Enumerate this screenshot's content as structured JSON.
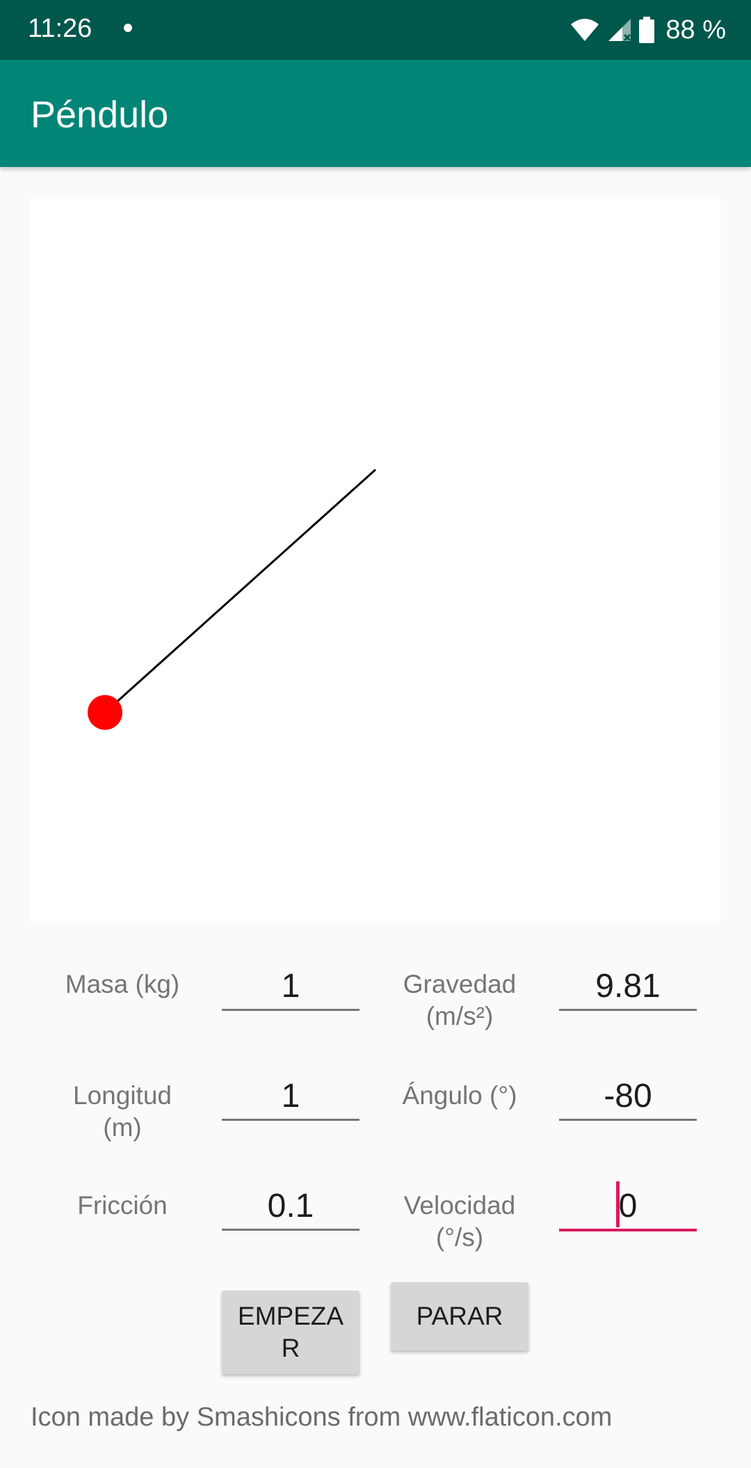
{
  "status_bar": {
    "time": "11:26",
    "battery": "88 %",
    "icons": [
      "notification-dot-icon",
      "wifi-icon",
      "signal-no-data-icon",
      "battery-icon"
    ]
  },
  "app_bar": {
    "title": "Péndulo"
  },
  "pendulum": {
    "rod_color": "#000000",
    "bob_color": "#ff0000"
  },
  "params": {
    "mass": {
      "label": "Masa (kg)",
      "value": "1"
    },
    "gravity": {
      "label_line1": "Gravedad",
      "label_line2": "(m/s²)",
      "value": "9.81"
    },
    "length": {
      "label_line1": "Longitud",
      "label_line2": "(m)",
      "value": "1"
    },
    "angle": {
      "label": "Ángulo (°)",
      "value": "-80"
    },
    "friction": {
      "label": "Fricción",
      "value": "0.1"
    },
    "velocity": {
      "label_line1": "Velocidad",
      "label_line2": "(°/s)",
      "value": "0"
    }
  },
  "buttons": {
    "start_line1": "EMPEZA",
    "start_line2": "R",
    "stop": "PARAR"
  },
  "footer": {
    "attribution": "Icon made by Smashicons from www.flaticon.com"
  },
  "colors": {
    "primary": "#008577",
    "primary_dark": "#00574b",
    "accent": "#d81b60"
  }
}
